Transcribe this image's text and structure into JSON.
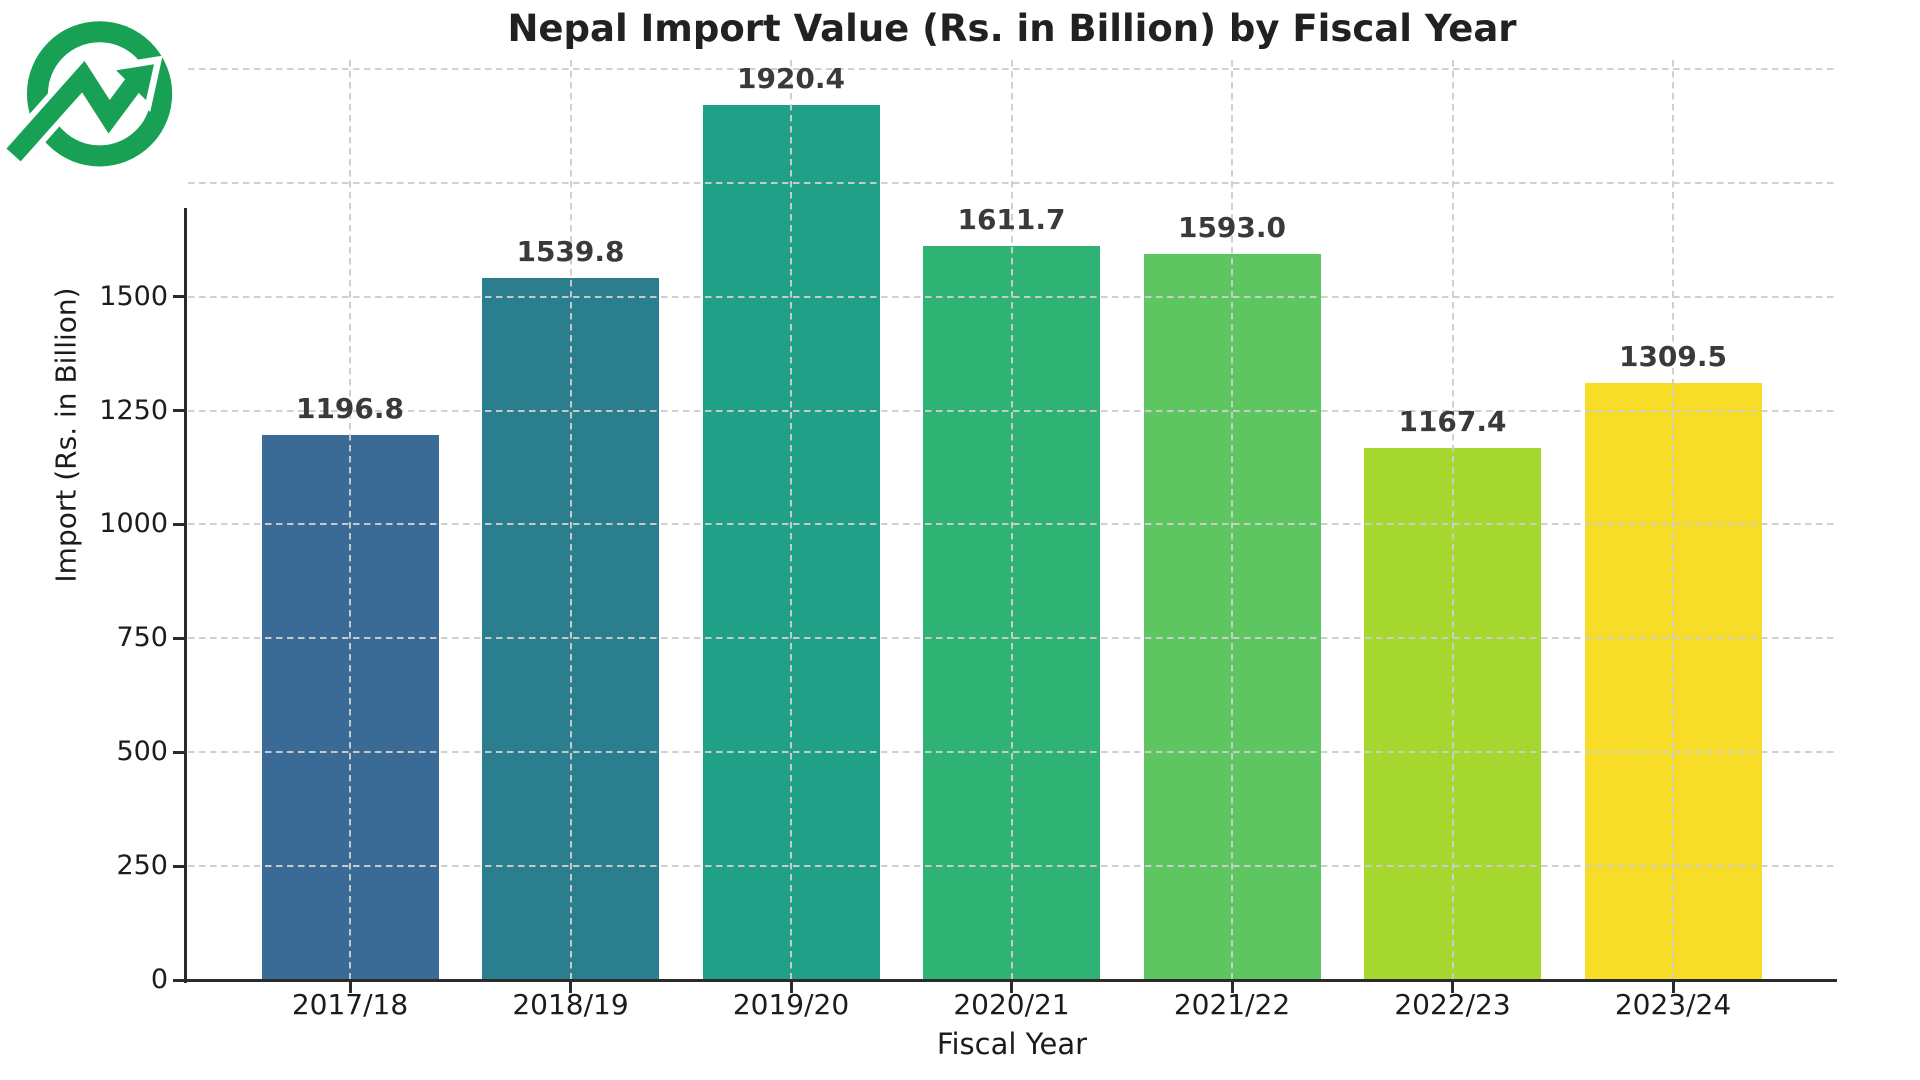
{
  "page": {
    "background": "#ffffff"
  },
  "logo": {
    "name": "growth-arrow-logo",
    "description": "green ring with upward trending zigzag arrow passing through it",
    "color": "#18a155"
  },
  "chart_data": {
    "type": "bar",
    "title": "Nepal Import Value (Rs. in Billion) by Fiscal Year",
    "xlabel": "Fiscal Year",
    "ylabel": "Import (Rs. in Billion)",
    "categories": [
      "2017/18",
      "2018/19",
      "2019/20",
      "2020/21",
      "2021/22",
      "2022/23",
      "2023/24"
    ],
    "values": [
      1196.8,
      1539.8,
      1920.4,
      1611.7,
      1593.0,
      1167.4,
      1309.5
    ],
    "value_labels": [
      "1196.8",
      "1539.8",
      "1920.4",
      "1611.7",
      "1593.0",
      "1167.4",
      "1309.5"
    ],
    "bar_colors": [
      "#3a6a96",
      "#2a7e8e",
      "#20a187",
      "#2fb375",
      "#5dc660",
      "#a6d72f",
      "#f8dd28"
    ],
    "yticks": [
      0,
      250,
      500,
      750,
      1000,
      1250,
      1500
    ],
    "ytick_labels": [
      "0",
      "250",
      "500",
      "750",
      "1000",
      "1250",
      "1500"
    ],
    "ylim": [
      0,
      2040
    ],
    "grid": {
      "style": "dashed",
      "color": "#cdcdcd",
      "horizontal_values": [
        250,
        500,
        750,
        1000,
        1250,
        1500,
        1750,
        2000
      ],
      "vertical": "one dashed line at each bar center"
    },
    "legend": null,
    "colors": {
      "axis": "#2b2b2b",
      "title_text": "#212121",
      "tick_text": "#1c1c1c",
      "value_label_text": "#3a3a3a"
    }
  }
}
